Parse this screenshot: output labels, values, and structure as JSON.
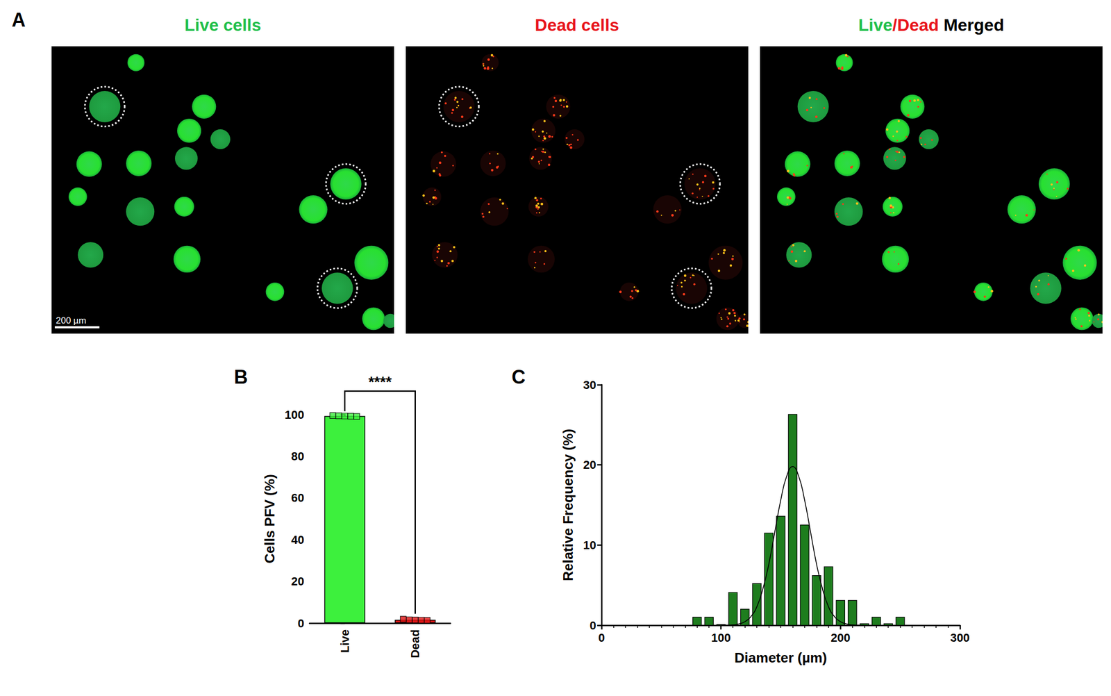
{
  "panel_a": {
    "letter": "A",
    "panels": [
      {
        "title_parts": [
          {
            "text": "Live cells",
            "color": "#1fbf4a"
          }
        ],
        "stain": "live"
      },
      {
        "title_parts": [
          {
            "text": "Dead cells",
            "color": "#e8141b"
          }
        ],
        "stain": "dead"
      },
      {
        "title_parts": [
          {
            "text": "Live",
            "color": "#1fbf4a"
          },
          {
            "text": "/Dead",
            "color": "#e8141b"
          },
          {
            "text": " Merged",
            "color": "#000000"
          }
        ],
        "stain": "merged"
      }
    ],
    "scale_bar": "200 µm"
  },
  "chart_data": [
    {
      "type": "bar",
      "letter": "B",
      "categories": [
        "Live",
        "Dead"
      ],
      "values": [
        99.3,
        1.6
      ],
      "colors": [
        "#3df03d",
        "#e01414"
      ],
      "points": [
        [
          99.5,
          99.4,
          99.3,
          99.2,
          99.1
        ],
        [
          1.9,
          1.6,
          1.5,
          1.4,
          1.3
        ]
      ],
      "marker": "square",
      "ylabel": "Cells PFV (%)",
      "ylim": [
        0,
        100
      ],
      "yticks": [
        0,
        20,
        40,
        60,
        80,
        100
      ],
      "annotations": [
        {
          "text": "****",
          "from": "Live",
          "to": "Dead"
        }
      ],
      "grid": false
    },
    {
      "type": "histogram",
      "letter": "C",
      "bins": [
        75,
        85,
        95,
        105,
        115,
        125,
        135,
        145,
        155,
        165,
        175,
        185,
        195,
        205,
        215,
        225,
        235,
        245,
        255
      ],
      "counts": [
        1,
        1,
        0.1,
        4.1,
        2,
        5.2,
        11.5,
        13.6,
        26.3,
        12.5,
        6.2,
        7.3,
        3.1,
        3.1,
        0.2,
        1,
        0.2,
        1
      ],
      "color": "#1e7d1e",
      "fit": {
        "x": [
          100,
          105,
          110,
          115,
          120,
          125,
          130,
          135,
          140,
          145,
          150,
          155,
          160,
          165,
          170,
          175,
          180,
          185,
          190,
          195,
          200,
          205,
          210,
          215,
          220
        ],
        "y": [
          0.0,
          0.01,
          0.05,
          0.16,
          0.44,
          1.07,
          2.3,
          4.5,
          7.6,
          11.6,
          15.6,
          18.6,
          19.8,
          18.6,
          15.6,
          11.6,
          7.6,
          4.5,
          2.3,
          1.07,
          0.44,
          0.16,
          0.05,
          0.01,
          0.0
        ],
        "color": "#000000",
        "line_style": "solid"
      },
      "xlabel": "Diameter (µm)",
      "ylabel": "Relative Frequency (%)",
      "xlim": [
        0,
        300
      ],
      "xticks": [
        0,
        100,
        200,
        300
      ],
      "ylim": [
        0,
        30
      ],
      "yticks": [
        0,
        10,
        20,
        30
      ],
      "grid": false
    }
  ]
}
